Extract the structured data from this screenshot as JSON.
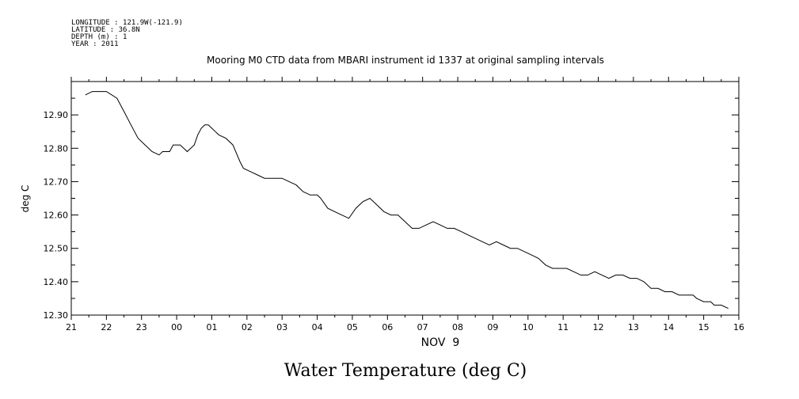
{
  "meta": {
    "longitude": "LONGITUDE : 121.9W(-121.9)",
    "latitude": "LATITUDE : 36.8N",
    "depth": "DEPTH (m) : 1",
    "year": "YEAR : 2011"
  },
  "caption": "Water Temperature (deg C)",
  "chart_data": {
    "type": "line",
    "title": "Mooring M0 CTD data from MBARI instrument id 1337 at original sampling intervals",
    "xlabel": "NOV  9",
    "ylabel": "deg C",
    "x_tick_labels": [
      "21",
      "22",
      "23",
      "00",
      "01",
      "02",
      "03",
      "04",
      "05",
      "06",
      "07",
      "08",
      "09",
      "10",
      "11",
      "12",
      "13",
      "14",
      "15",
      "16"
    ],
    "y_tick_labels": [
      "12.30",
      "12.40",
      "12.50",
      "12.60",
      "12.70",
      "12.80",
      "12.90"
    ],
    "y_ticks": [
      12.3,
      12.4,
      12.5,
      12.6,
      12.7,
      12.8,
      12.9
    ],
    "xlim": [
      21,
      40
    ],
    "ylim": [
      12.3,
      13.0
    ],
    "grid": false,
    "series": [
      {
        "x": [
          21.4,
          21.6,
          21.8,
          22.0,
          22.3,
          22.5,
          22.7,
          22.9,
          23.1,
          23.3,
          23.5,
          23.6,
          23.8,
          23.9,
          24.1,
          24.2,
          24.3,
          24.4,
          24.5,
          24.6,
          24.7,
          24.8,
          24.9,
          25.0,
          25.1,
          25.2,
          25.4,
          25.6,
          25.8,
          25.9,
          26.1,
          26.3,
          26.5,
          26.7,
          27.0,
          27.2,
          27.4,
          27.6,
          27.8,
          28.0,
          28.1,
          28.3,
          28.5,
          28.7,
          28.9,
          29.1,
          29.3,
          29.5,
          29.7,
          29.9,
          30.1,
          30.2,
          30.3,
          30.5,
          30.7,
          30.9,
          31.1,
          31.3,
          31.5,
          31.7,
          31.9,
          32.1,
          32.3,
          32.5,
          32.7,
          32.9,
          33.1,
          33.3,
          33.5,
          33.7,
          33.9,
          34.1,
          34.3,
          34.5,
          34.7,
          34.9,
          35.1,
          35.3,
          35.5,
          35.7,
          35.9,
          36.1,
          36.3,
          36.5,
          36.7,
          36.9,
          37.1,
          37.3,
          37.5,
          37.7,
          37.9,
          38.1,
          38.3,
          38.5,
          38.7,
          38.8,
          39.0,
          39.2,
          39.3,
          39.4,
          39.5,
          39.7
        ],
        "y": [
          12.96,
          12.97,
          12.97,
          12.97,
          12.95,
          12.91,
          12.87,
          12.83,
          12.81,
          12.79,
          12.78,
          12.79,
          12.79,
          12.81,
          12.81,
          12.8,
          12.79,
          12.8,
          12.81,
          12.84,
          12.86,
          12.87,
          12.87,
          12.86,
          12.85,
          12.84,
          12.83,
          12.81,
          12.76,
          12.74,
          12.73,
          12.72,
          12.71,
          12.71,
          12.71,
          12.7,
          12.69,
          12.67,
          12.66,
          12.66,
          12.65,
          12.62,
          12.61,
          12.6,
          12.59,
          12.62,
          12.64,
          12.65,
          12.63,
          12.61,
          12.6,
          12.6,
          12.6,
          12.58,
          12.56,
          12.56,
          12.57,
          12.58,
          12.57,
          12.56,
          12.56,
          12.55,
          12.54,
          12.53,
          12.52,
          12.51,
          12.52,
          12.51,
          12.5,
          12.5,
          12.49,
          12.48,
          12.47,
          12.45,
          12.44,
          12.44,
          12.44,
          12.43,
          12.42,
          12.42,
          12.43,
          12.42,
          12.41,
          12.42,
          12.42,
          12.41,
          12.41,
          12.4,
          12.38,
          12.38,
          12.37,
          12.37,
          12.36,
          12.36,
          12.36,
          12.35,
          12.34,
          12.34,
          12.33,
          12.33,
          12.33,
          12.32
        ]
      }
    ]
  }
}
